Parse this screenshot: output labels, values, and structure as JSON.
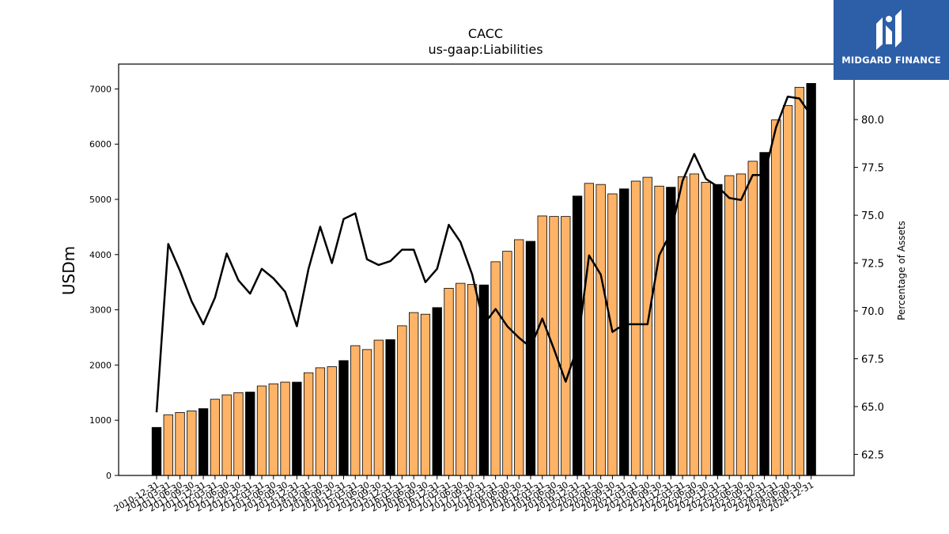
{
  "brand": {
    "name": "MIDGARD FINANCE",
    "bg_color": "#2d5ea8"
  },
  "chart_data": {
    "type": "bar",
    "title": "CACC",
    "subtitle": "us-gaap:Liabilities",
    "ylabel": "USDm",
    "y2label": "Percentage of Assets",
    "ylim": [
      0,
      7450
    ],
    "y2lim": [
      61.4,
      82.9
    ],
    "yticks": [
      0,
      1000,
      2000,
      3000,
      4000,
      5000,
      6000,
      7000
    ],
    "y2ticks": [
      "62.5",
      "65.0",
      "67.5",
      "70.0",
      "72.5",
      "75.0",
      "77.5",
      "80.0"
    ],
    "colors": {
      "annual": "#000000",
      "quarterly": "#ffb366",
      "line": "#000000"
    },
    "categories": [
      "2010-12-31",
      "2011-03-31",
      "2011-06-30",
      "2011-09-30",
      "2011-12-31",
      "2012-03-31",
      "2012-06-30",
      "2012-09-30",
      "2012-12-31",
      "2013-03-31",
      "2013-06-30",
      "2013-09-30",
      "2013-12-31",
      "2014-03-31",
      "2014-06-30",
      "2014-09-30",
      "2014-12-31",
      "2015-03-31",
      "2015-06-30",
      "2015-09-30",
      "2015-12-31",
      "2016-03-31",
      "2016-06-30",
      "2016-09-30",
      "2016-12-31",
      "2017-03-31",
      "2017-06-30",
      "2017-09-30",
      "2017-12-31",
      "2018-03-31",
      "2018-06-30",
      "2018-09-30",
      "2018-12-31",
      "2019-03-31",
      "2019-06-30",
      "2019-09-30",
      "2019-12-31",
      "2020-03-31",
      "2020-06-30",
      "2020-09-30",
      "2020-12-31",
      "2021-03-31",
      "2021-06-30",
      "2021-09-30",
      "2021-12-31",
      "2022-03-31",
      "2022-06-30",
      "2022-09-30",
      "2022-12-31",
      "2023-03-31",
      "2023-06-30",
      "2023-09-30",
      "2023-12-31",
      "2024-03-31",
      "2024-06-30",
      "2024-09-30",
      "2024-12-31"
    ],
    "series": [
      {
        "values": [
          870,
          1100,
          1140,
          1170,
          1210,
          1380,
          1460,
          1500,
          1510,
          1620,
          1660,
          1690,
          1690,
          1860,
          1950,
          1970,
          2080,
          2350,
          2280,
          2450,
          2460,
          2710,
          2950,
          2920,
          3040,
          3390,
          3480,
          3460,
          3450,
          3870,
          4060,
          4270,
          4240,
          4700,
          4690,
          4690,
          5060,
          5290,
          5270,
          5100,
          5190,
          5330,
          5400,
          5240,
          5220,
          5410,
          5460,
          5310,
          5270,
          5430,
          5460,
          5690,
          5850,
          6440,
          6700,
          7030,
          7100
        ]
      },
      {
        "values": [
          64.7,
          73.5,
          72.1,
          70.5,
          69.3,
          70.7,
          73.0,
          71.6,
          70.9,
          72.2,
          71.7,
          71.0,
          69.2,
          72.2,
          74.4,
          72.5,
          74.8,
          75.1,
          72.7,
          72.4,
          72.6,
          73.2,
          73.2,
          71.5,
          72.2,
          74.5,
          73.6,
          71.9,
          69.3,
          70.1,
          69.2,
          68.6,
          68.1,
          69.6,
          68.0,
          66.3,
          68.1,
          72.9,
          71.9,
          68.9,
          69.3,
          69.3,
          69.3,
          72.9,
          74.1,
          76.8,
          78.2,
          76.9,
          76.5,
          75.9,
          75.8,
          77.1,
          77.1,
          79.6,
          81.2,
          81.1,
          80.2
        ]
      }
    ]
  }
}
